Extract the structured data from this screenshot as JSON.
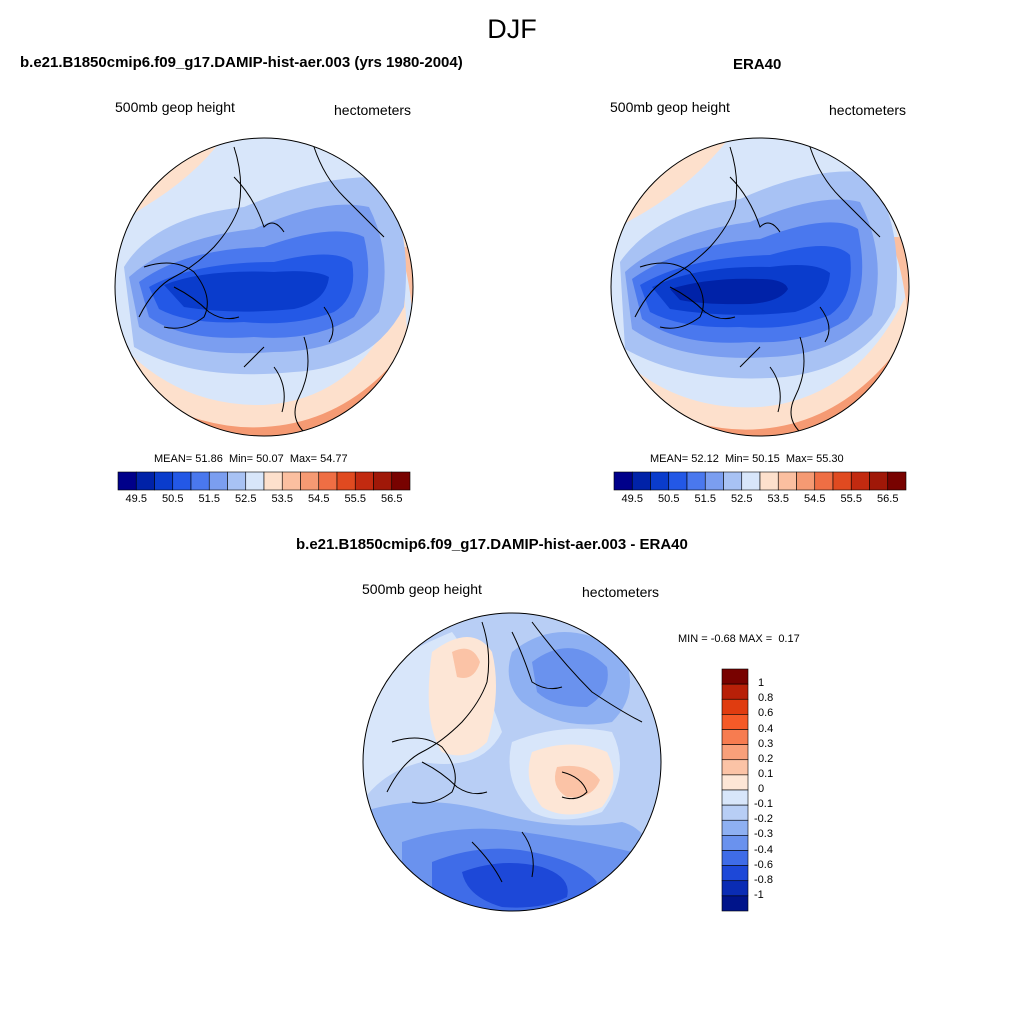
{
  "figure": {
    "title": "DJF"
  },
  "panel_model": {
    "title": "b.e21.B1850cmip6.f09_g17.DAMIP-hist-aer.003 (yrs 1980-2004)",
    "left_label": "500mb geop height",
    "right_label": "hectometers",
    "stats": {
      "mean_label": "MEAN=",
      "mean": "51.86",
      "min_label": "Min=",
      "min": "50.07",
      "max_label": "Max=",
      "max": "54.77"
    }
  },
  "panel_obs": {
    "title": "ERA40",
    "left_label": "500mb geop height",
    "right_label": "hectometers",
    "stats": {
      "mean_label": "MEAN=",
      "mean": "52.12",
      "min_label": "Min=",
      "min": "50.15",
      "max_label": "Max=",
      "max": "55.30"
    }
  },
  "panel_diff": {
    "title": "b.e21.B1850cmip6.f09_g17.DAMIP-hist-aer.003 - ERA40",
    "left_label": "500mb geop height",
    "right_label": "hectometers",
    "stats": {
      "min_label": "MIN =",
      "min": "-0.68",
      "max_label": "MAX =",
      "max": "0.17"
    }
  },
  "chart_data": [
    {
      "type": "heatmap",
      "title": "b.e21.B1850cmip6.f09_g17.DAMIP-hist-aer.003 (yrs 1980-2004)",
      "projection": "north polar stereographic",
      "variable": "500mb geop height",
      "units": "hectometers",
      "stats": {
        "mean": 51.86,
        "min": 50.07,
        "max": 54.77
      },
      "colorbar": {
        "tick_labels": [
          "49.5",
          "50.5",
          "51.5",
          "52.5",
          "53.5",
          "54.5",
          "55.5",
          "56.5"
        ],
        "levels": [
          49.5,
          50,
          50.5,
          51,
          51.5,
          52,
          52.5,
          53,
          53.5,
          54,
          54.5,
          55,
          55.5,
          56,
          56.5
        ],
        "colors": [
          "#00008a",
          "#0022a8",
          "#0a3ccc",
          "#2358e6",
          "#4a78ee",
          "#7b9ef0",
          "#a8c2f4",
          "#d8e6fa",
          "#fde0cc",
          "#fbbfa0",
          "#f59a73",
          "#ef6e44",
          "#e04a20",
          "#c22a10",
          "#a01808",
          "#780200"
        ]
      }
    },
    {
      "type": "heatmap",
      "title": "ERA40",
      "projection": "north polar stereographic",
      "variable": "500mb geop height",
      "units": "hectometers",
      "stats": {
        "mean": 52.12,
        "min": 50.15,
        "max": 55.3
      },
      "colorbar": {
        "tick_labels": [
          "49.5",
          "50.5",
          "51.5",
          "52.5",
          "53.5",
          "54.5",
          "55.5",
          "56.5"
        ],
        "levels": [
          49.5,
          50,
          50.5,
          51,
          51.5,
          52,
          52.5,
          53,
          53.5,
          54,
          54.5,
          55,
          55.5,
          56,
          56.5
        ],
        "colors": [
          "#00008a",
          "#0022a8",
          "#0a3ccc",
          "#2358e6",
          "#4a78ee",
          "#7b9ef0",
          "#a8c2f4",
          "#d8e6fa",
          "#fde0cc",
          "#fbbfa0",
          "#f59a73",
          "#ef6e44",
          "#e04a20",
          "#c22a10",
          "#a01808",
          "#780200"
        ]
      }
    },
    {
      "type": "heatmap",
      "title": "b.e21.B1850cmip6.f09_g17.DAMIP-hist-aer.003 - ERA40",
      "projection": "north polar stereographic",
      "variable": "500mb geop height",
      "units": "hectometers",
      "stats": {
        "min": -0.68,
        "max": 0.17
      },
      "colorbar": {
        "orientation": "vertical",
        "tick_labels": [
          "1",
          "0.8",
          "0.6",
          "0.4",
          "0.3",
          "0.2",
          "0.1",
          "0",
          "-0.1",
          "-0.2",
          "-0.3",
          "-0.4",
          "-0.6",
          "-0.8",
          "-1"
        ],
        "colors": [
          "#780200",
          "#b82008",
          "#e03c10",
          "#f55a28",
          "#f77c50",
          "#f9a07a",
          "#fbc3a6",
          "#fde6d6",
          "#d8e6fa",
          "#b8cef5",
          "#8eb0f2",
          "#6a92ee",
          "#3f6ce8",
          "#1d48d8",
          "#0a2cb4",
          "#00148a"
        ]
      }
    }
  ]
}
